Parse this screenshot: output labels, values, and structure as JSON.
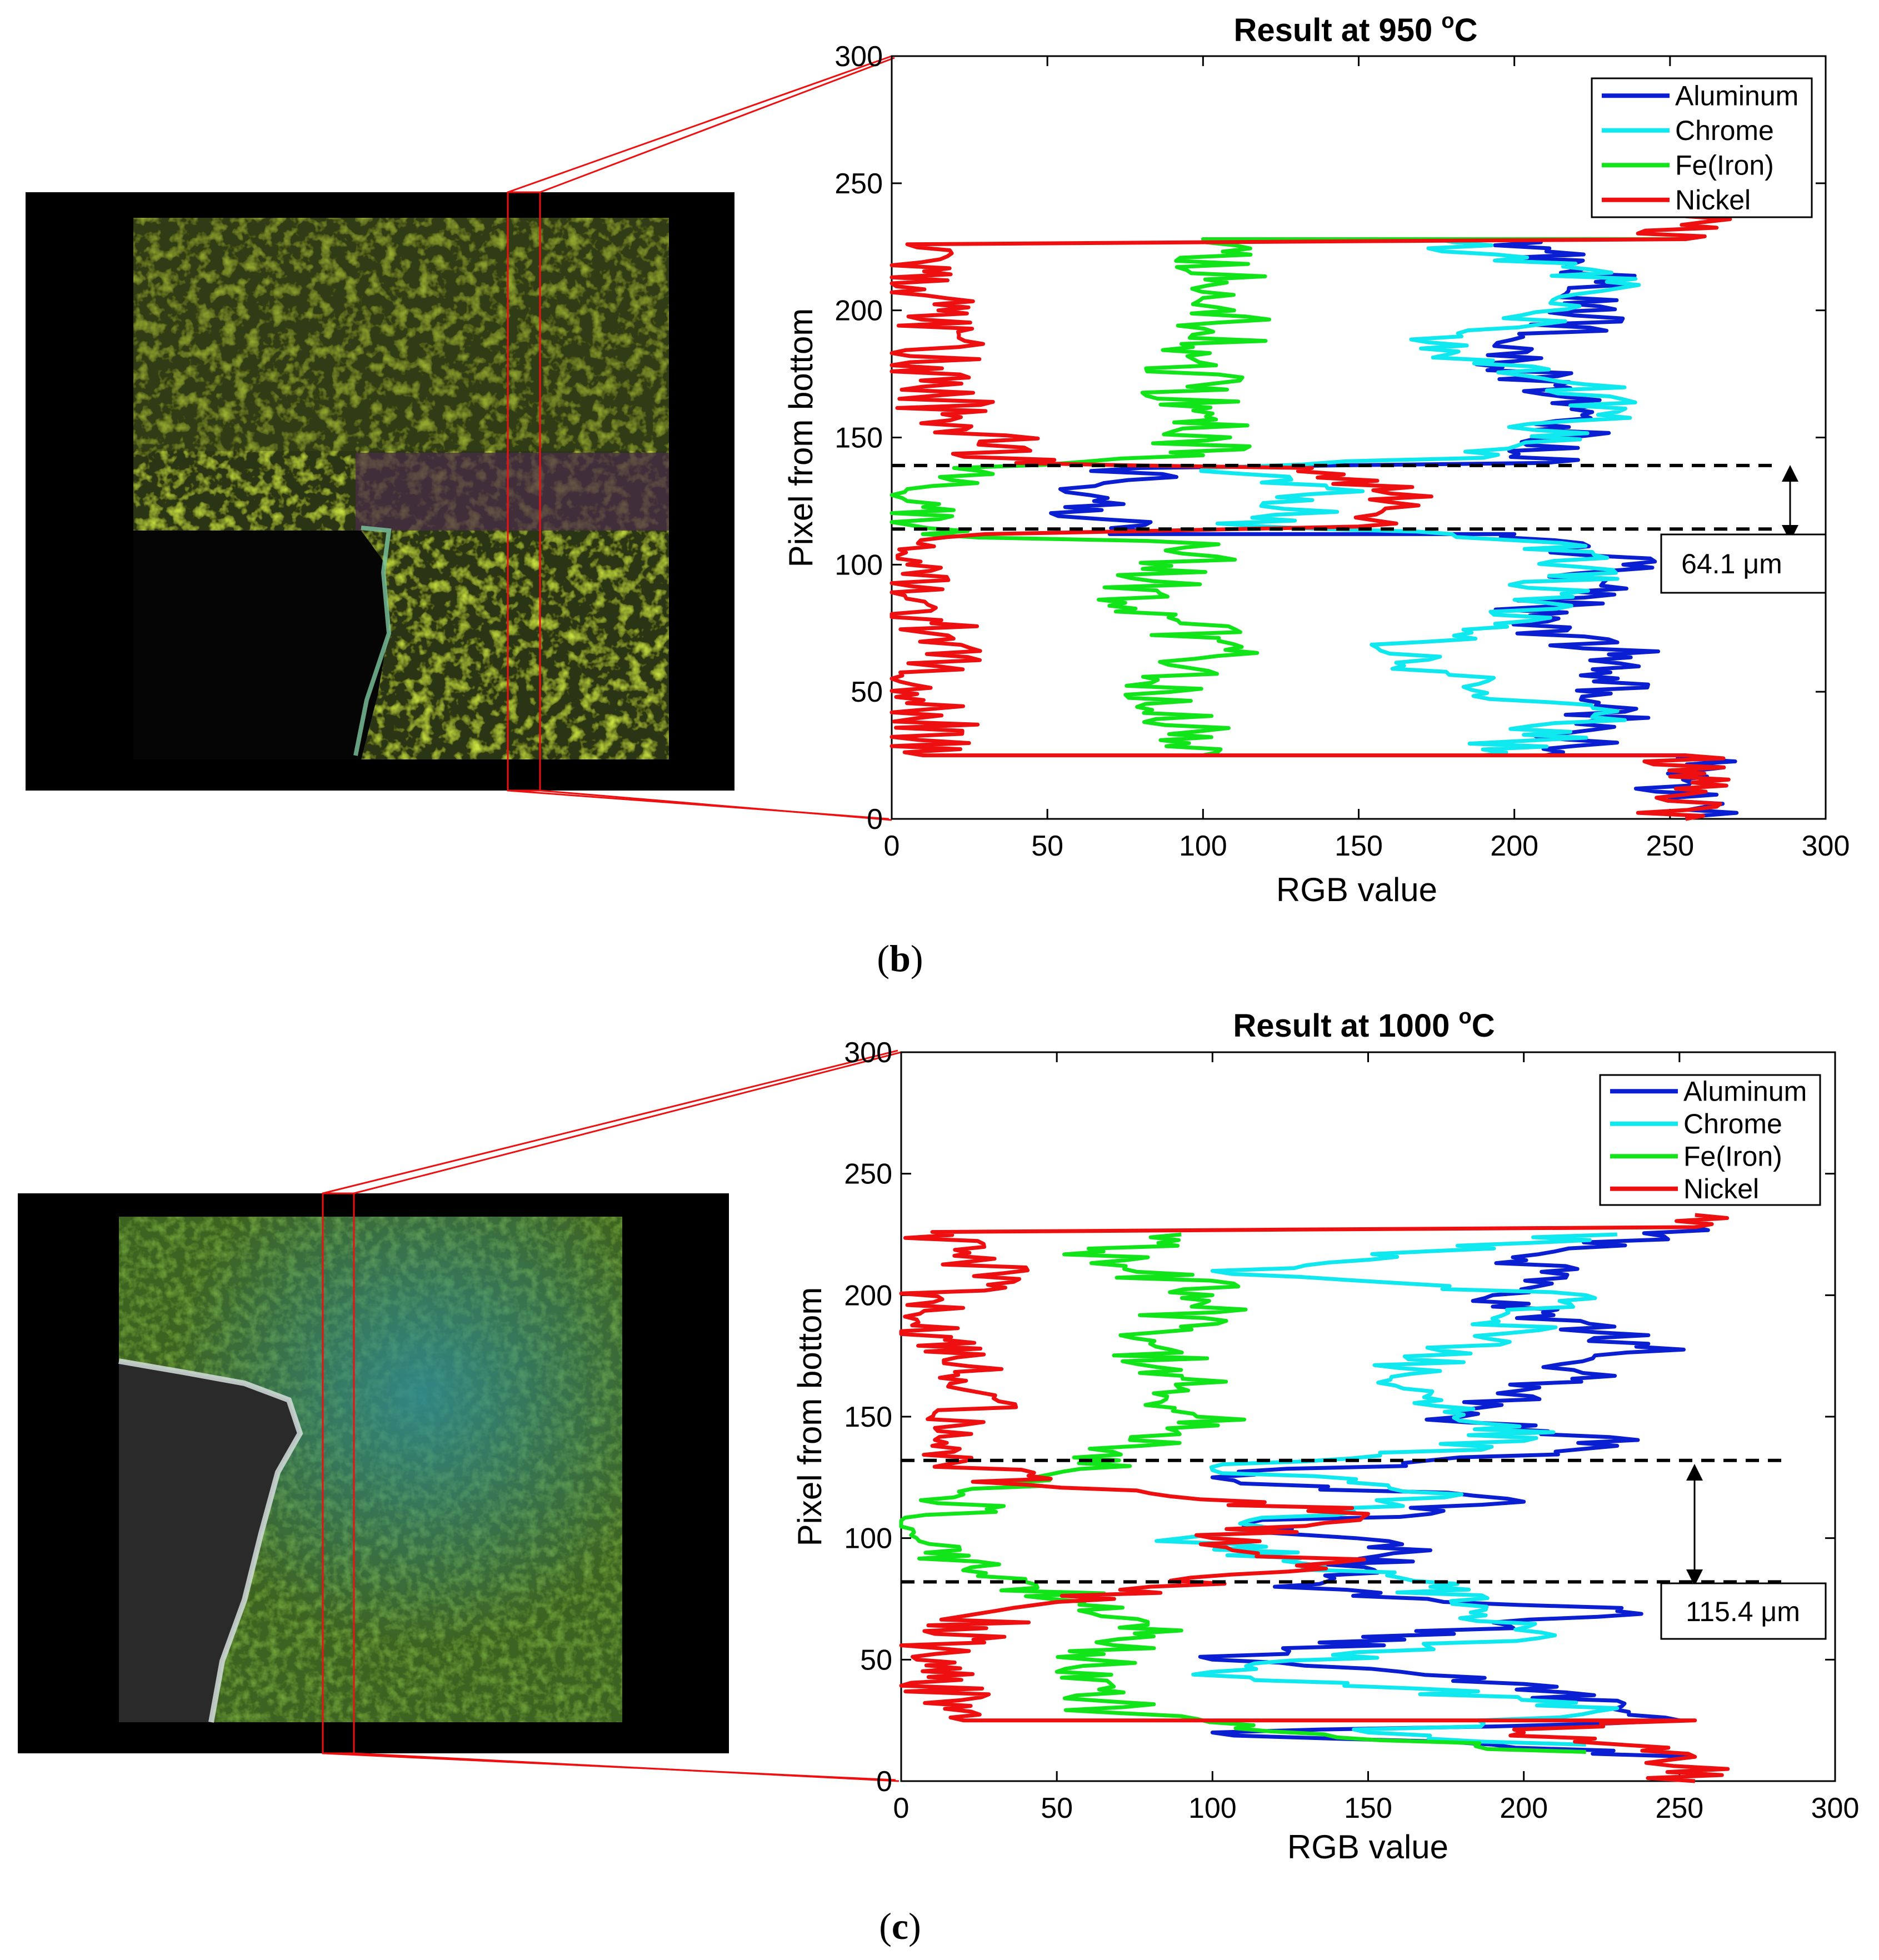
{
  "panels": [
    {
      "label": "b",
      "title": "Result at 950 °C",
      "title_main": "Result at 950 ",
      "title_sup": "o",
      "title_unit": "C",
      "annotation": "64.1 μm",
      "micrograph_palette": "green-yellow",
      "colors": {
        "Aluminum": "#0a1ed2",
        "Chrome": "#10e8f0",
        "Fe(Iron)": "#12e41a",
        "Nickel": "#ee1010"
      }
    },
    {
      "label": "c",
      "title": "Result at 1000 °C",
      "title_main": "Result at 1000 ",
      "title_sup": "o",
      "title_unit": "C",
      "annotation": "115.4 μm",
      "micrograph_palette": "green-teal",
      "colors": {
        "Aluminum": "#0a1ed2",
        "Chrome": "#10e8f0",
        "Fe(Iron)": "#12e41a",
        "Nickel": "#ee1010"
      }
    }
  ],
  "chart_data": [
    {
      "type": "line",
      "title": "Result at 950 °C",
      "xlabel": "RGB value",
      "ylabel": "Pixel from bottom",
      "xlim": [
        0,
        300
      ],
      "ylim": [
        0,
        300
      ],
      "xticks": [
        "0",
        "50",
        "100",
        "150",
        "200",
        "250",
        "300"
      ],
      "yticks": [
        "0",
        "50",
        "100",
        "150",
        "200",
        "250",
        "300"
      ],
      "legend_position": "top-right",
      "grid": false,
      "series": [
        {
          "name": "Aluminum",
          "values": [
            [
              255,
              0
            ],
            [
              255,
              25
            ],
            [
              210,
              25
            ],
            [
              225,
              35
            ],
            [
              240,
              60
            ],
            [
              205,
              80
            ],
            [
              235,
              100
            ],
            [
              200,
              112
            ],
            [
              70,
              112
            ],
            [
              65,
              125
            ],
            [
              80,
              138
            ],
            [
              210,
              140
            ],
            [
              225,
              160
            ],
            [
              200,
              180
            ],
            [
              235,
              210
            ],
            [
              200,
              228
            ],
            [
              255,
              228
            ]
          ]
        },
        {
          "name": "Chrome",
          "values": [
            [
              190,
              25
            ],
            [
              225,
              40
            ],
            [
              160,
              65
            ],
            [
              210,
              85
            ],
            [
              225,
              105
            ],
            [
              180,
              112
            ],
            [
              120,
              115
            ],
            [
              140,
              130
            ],
            [
              100,
              138
            ],
            [
              190,
              142
            ],
            [
              235,
              165
            ],
            [
              170,
              185
            ],
            [
              240,
              210
            ],
            [
              175,
              228
            ]
          ]
        },
        {
          "name": "Fe(Iron)",
          "values": [
            [
              100,
              25
            ],
            [
              90,
              50
            ],
            [
              105,
              70
            ],
            [
              75,
              85
            ],
            [
              105,
              108
            ],
            [
              10,
              112
            ],
            [
              5,
              125
            ],
            [
              20,
              138
            ],
            [
              100,
              143
            ],
            [
              95,
              170
            ],
            [
              110,
              200
            ],
            [
              100,
              228
            ],
            [
              255,
              228
            ]
          ]
        },
        {
          "name": "Nickel",
          "values": [
            [
              255,
              0
            ],
            [
              255,
              25
            ],
            [
              10,
              25
            ],
            [
              15,
              60
            ],
            [
              5,
              100
            ],
            [
              30,
              112
            ],
            [
              150,
              115
            ],
            [
              160,
              128
            ],
            [
              135,
              138
            ],
            [
              40,
              140
            ],
            [
              10,
              170
            ],
            [
              15,
              200
            ],
            [
              5,
              226
            ],
            [
              255,
              228
            ],
            [
              255,
              237
            ]
          ]
        }
      ],
      "boundaries_y": [
        139,
        114
      ]
    },
    {
      "type": "line",
      "title": "Result at 1000 °C",
      "xlabel": "RGB value",
      "ylabel": "Pixel from bottom",
      "xlim": [
        0,
        300
      ],
      "ylim": [
        0,
        300
      ],
      "xticks": [
        "0",
        "50",
        "100",
        "150",
        "200",
        "250",
        "300"
      ],
      "yticks": [
        "0",
        "50",
        "100",
        "150",
        "200",
        "250",
        "300"
      ],
      "legend_position": "top-right",
      "grid": false,
      "series": [
        {
          "name": "Aluminum",
          "values": [
            [
              255,
              10
            ],
            [
              190,
              15
            ],
            [
              100,
              20
            ],
            [
              250,
              25
            ],
            [
              200,
              40
            ],
            [
              100,
              50
            ],
            [
              230,
              70
            ],
            [
              120,
              80
            ],
            [
              170,
              95
            ],
            [
              110,
              105
            ],
            [
              200,
              115
            ],
            [
              100,
              125
            ],
            [
              230,
              138
            ],
            [
              180,
              150
            ],
            [
              240,
              180
            ],
            [
              190,
              200
            ],
            [
              210,
              218
            ],
            [
              255,
              228
            ]
          ]
        },
        {
          "name": "Chrome",
          "values": [
            [
              220,
              15
            ],
            [
              150,
              20
            ],
            [
              230,
              30
            ],
            [
              100,
              45
            ],
            [
              210,
              60
            ],
            [
              170,
              80
            ],
            [
              90,
              100
            ],
            [
              180,
              118
            ],
            [
              100,
              128
            ],
            [
              200,
              140
            ],
            [
              160,
              170
            ],
            [
              220,
              200
            ],
            [
              100,
              210
            ],
            [
              230,
              225
            ]
          ]
        },
        {
          "name": "Fe(Iron)",
          "values": [
            [
              220,
              12
            ],
            [
              140,
              18
            ],
            [
              70,
              28
            ],
            [
              50,
              45
            ],
            [
              90,
              62
            ],
            [
              40,
              82
            ],
            [
              5,
              100
            ],
            [
              20,
              118
            ],
            [
              70,
              132
            ],
            [
              95,
              150
            ],
            [
              80,
              180
            ],
            [
              100,
              200
            ],
            [
              65,
              218
            ],
            [
              90,
              225
            ]
          ]
        },
        {
          "name": "Nickel",
          "values": [
            [
              255,
              0
            ],
            [
              255,
              10
            ],
            [
              200,
              20
            ],
            [
              255,
              25
            ],
            [
              20,
              25
            ],
            [
              5,
              50
            ],
            [
              30,
              70
            ],
            [
              80,
              80
            ],
            [
              140,
              90
            ],
            [
              100,
              100
            ],
            [
              150,
              110
            ],
            [
              40,
              122
            ],
            [
              10,
              138
            ],
            [
              25,
              160
            ],
            [
              5,
              190
            ],
            [
              30,
              215
            ],
            [
              10,
              226
            ],
            [
              255,
              228
            ],
            [
              255,
              233
            ]
          ]
        }
      ],
      "boundaries_y": [
        132,
        82
      ]
    }
  ]
}
